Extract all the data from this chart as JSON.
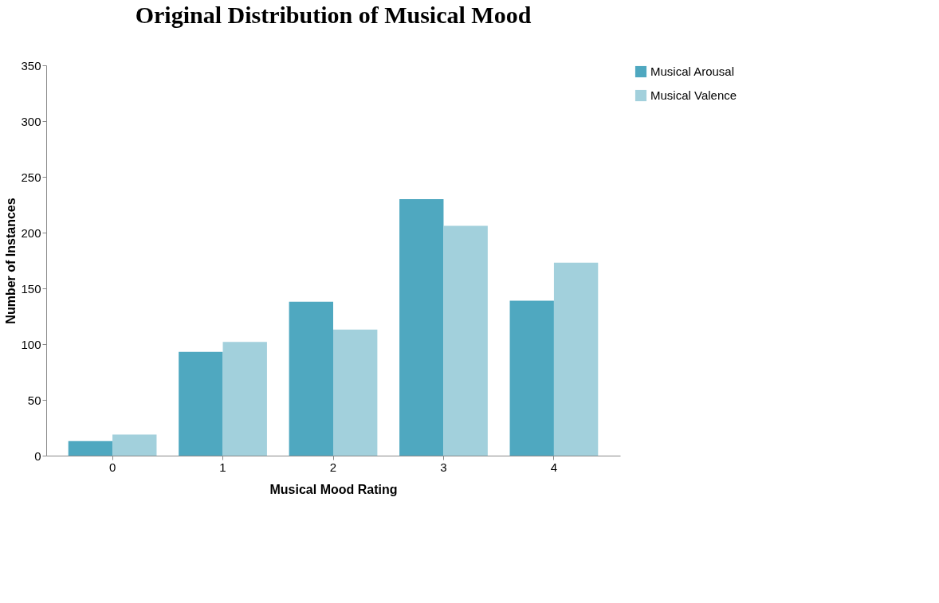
{
  "chart_data": {
    "type": "bar",
    "title": "Original Distribution of Musical Mood",
    "xlabel": "Musical Mood Rating",
    "ylabel": "Number of Instances",
    "categories": [
      "0",
      "1",
      "2",
      "3",
      "4"
    ],
    "series": [
      {
        "name": "Musical Arousal",
        "color": "#4fa8c0",
        "values": [
          13,
          93,
          138,
          230,
          139
        ]
      },
      {
        "name": "Musical Valence",
        "color": "#a2d0dc",
        "values": [
          19,
          102,
          113,
          206,
          173
        ]
      }
    ],
    "ylim": [
      0,
      350
    ],
    "yticks": [
      0,
      50,
      100,
      150,
      200,
      250,
      300,
      350
    ],
    "grid": false,
    "legend": "right"
  }
}
